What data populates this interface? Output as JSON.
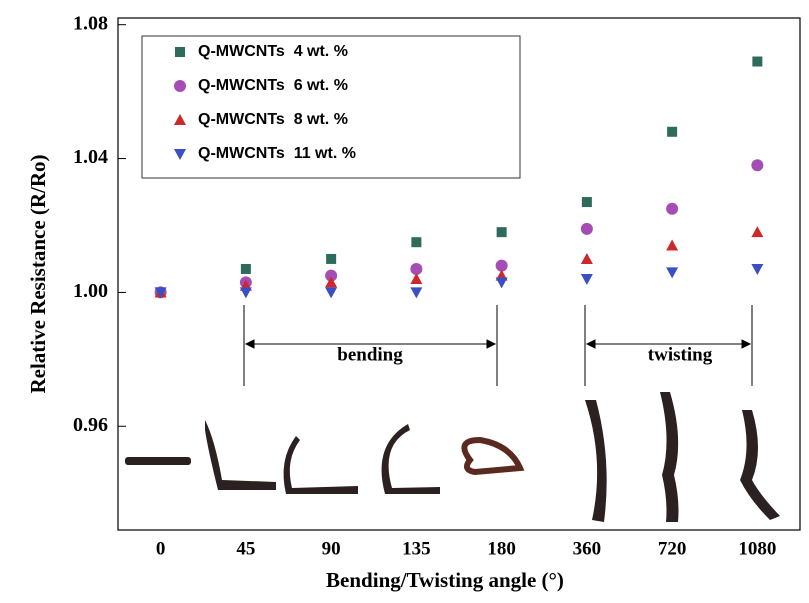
{
  "chart_data": {
    "type": "scatter",
    "x_label": "Bending/Twisting angle (°)",
    "y_label": "Relative Resistance (R/Ro)",
    "categories": [
      "0",
      "45",
      "90",
      "135",
      "180",
      "360",
      "720",
      "1080"
    ],
    "series": [
      {
        "name": "Q-MWCNTs  4 wt. %",
        "color": "#2f6b5d",
        "marker": "square",
        "values": [
          1.0,
          1.007,
          1.01,
          1.015,
          1.018,
          1.027,
          1.048,
          1.069
        ]
      },
      {
        "name": "Q-MWCNTs  6 wt. %",
        "color": "#a64db5",
        "marker": "circle",
        "values": [
          1.0,
          1.003,
          1.005,
          1.007,
          1.008,
          1.019,
          1.025,
          1.038
        ]
      },
      {
        "name": "Q-MWCNTs  8 wt. %",
        "color": "#cc2a2a",
        "marker": "triangle-up",
        "values": [
          1.0,
          1.002,
          1.003,
          1.004,
          1.005,
          1.01,
          1.014,
          1.018
        ]
      },
      {
        "name": "Q-MWCNTs  11 wt. %",
        "color": "#3b4fc4",
        "marker": "triangle-down",
        "values": [
          1.0,
          1.0,
          1.0,
          1.0,
          1.003,
          1.004,
          1.006,
          1.007
        ]
      }
    ],
    "ylim": [
      0.929,
      1.082
    ],
    "yticks": [
      {
        "value": 0.96,
        "label": "0.96"
      },
      {
        "value": 1.0,
        "label": "1.00"
      },
      {
        "value": 1.04,
        "label": "1.04"
      },
      {
        "value": 1.08,
        "label": "1.08"
      }
    ],
    "legend": "upper left",
    "annotations": [
      "bending",
      "twisting"
    ]
  }
}
